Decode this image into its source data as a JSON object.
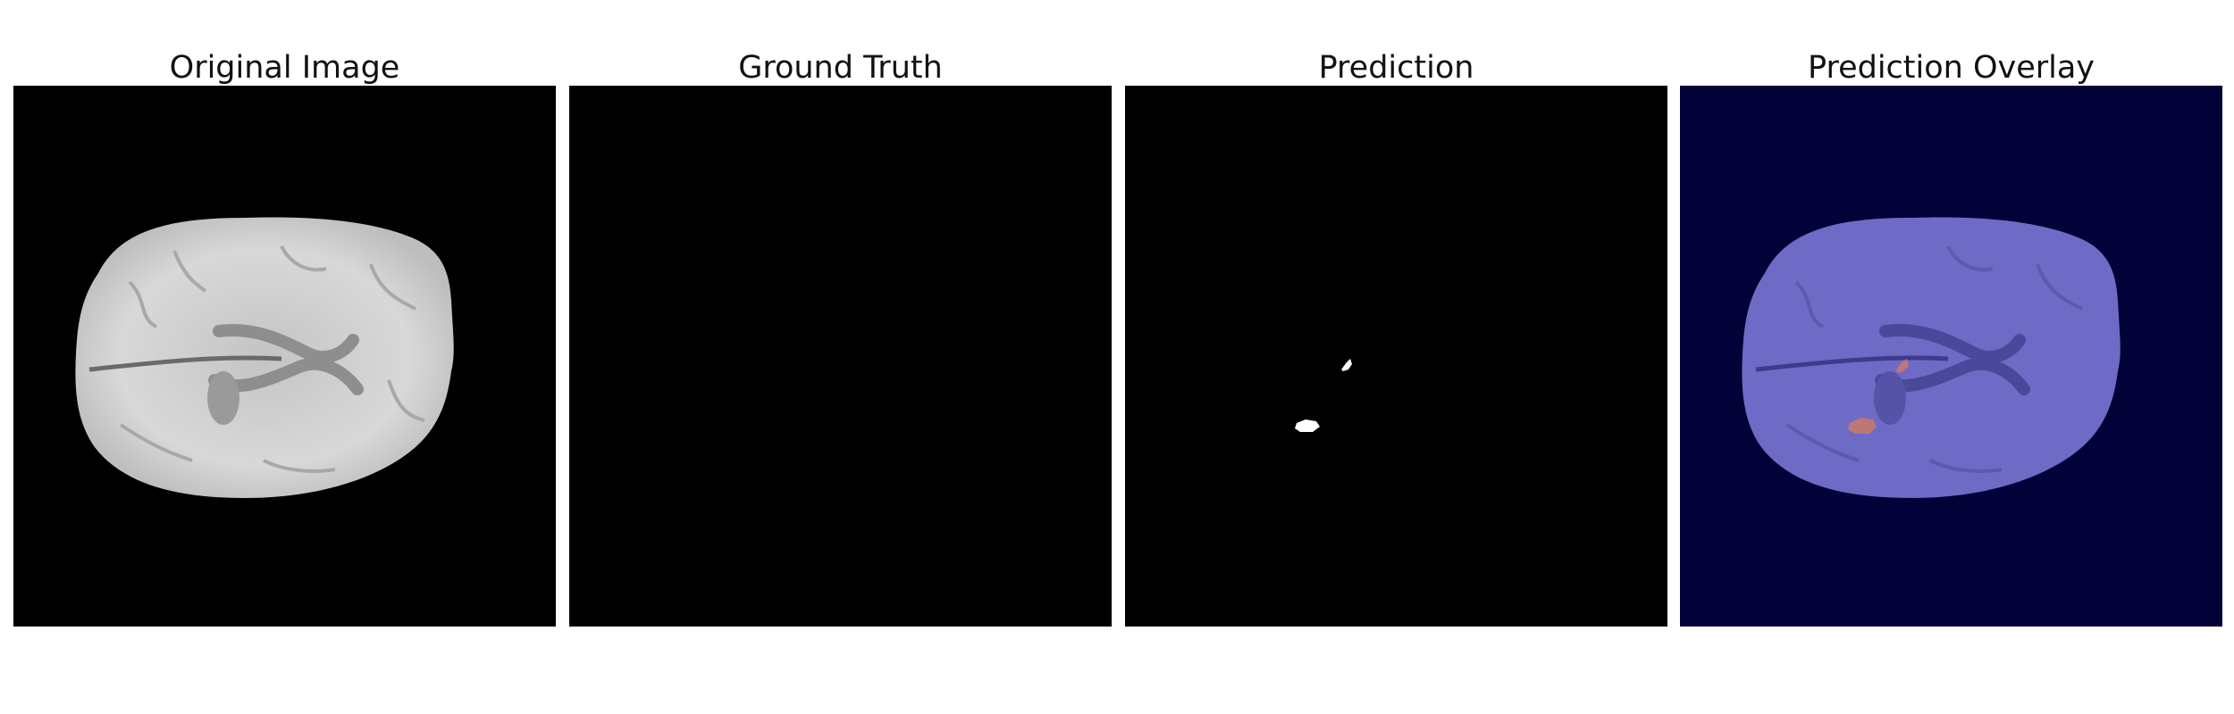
{
  "panels": [
    {
      "title": "Original Image"
    },
    {
      "title": "Ground Truth"
    },
    {
      "title": "Prediction"
    },
    {
      "title": "Prediction Overlay"
    }
  ],
  "colors": {
    "background": "#000000",
    "brain_gray": "#d6d6d6",
    "overlay_background": "#020238",
    "overlay_brain": "#6e6cc8",
    "prediction_mask": "#ffffff",
    "overlay_mask": "#c8786a"
  }
}
